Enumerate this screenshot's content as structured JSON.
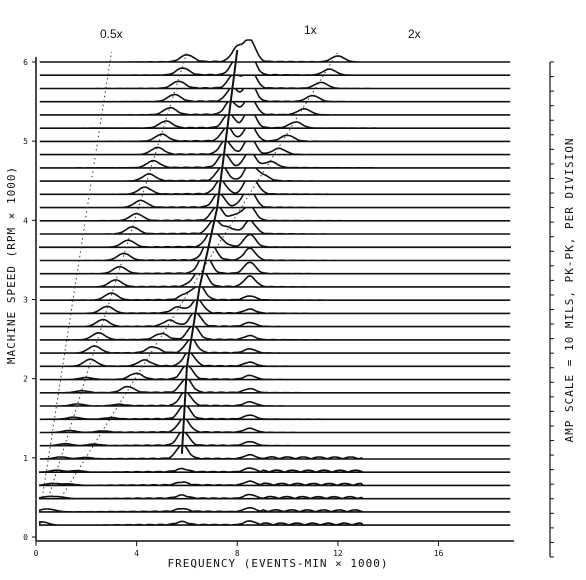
{
  "chart_data": {
    "type": "line",
    "subtype": "waterfall-spectra",
    "xlabel": "FREQUENCY (EVENTS-MIN × 1000)",
    "ylabel": "MACHINE SPEED (RPM × 1000)",
    "right_label": "AMP SCALE = 10 MILS, PK-PK, PER DIVISION",
    "x_ticks": [
      "0",
      "4",
      "8",
      "12",
      "16"
    ],
    "y_ticks": [
      "0",
      "1",
      "2",
      "3",
      "4",
      "5",
      "6"
    ],
    "xlim": [
      0,
      19
    ],
    "ylim": [
      0,
      6
    ],
    "order_lines": [
      {
        "label": "0.5x",
        "order": 0.5
      },
      {
        "label": "1x",
        "order": 1
      },
      {
        "label": "2x",
        "order": 2
      }
    ],
    "resonance_freq": 8.5,
    "resonance_line": {
      "points": [
        [
          5.8,
          0.9
        ],
        [
          6.0,
          2.0
        ],
        [
          6.5,
          3.0
        ],
        [
          7.2,
          4.0
        ],
        [
          7.6,
          5.0
        ],
        [
          8.0,
          6.0
        ]
      ]
    },
    "slice_count": 36,
    "grid": false,
    "legend": "none"
  }
}
